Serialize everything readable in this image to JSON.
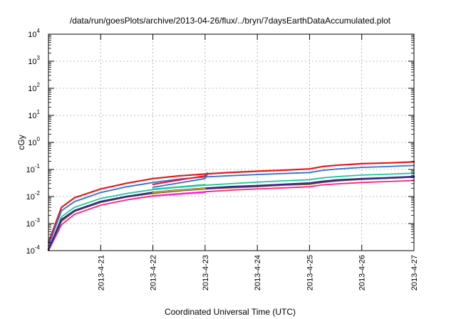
{
  "chart_data": {
    "type": "line",
    "title": "/data/run/goesPlots/archive/2013-04-26/flux/../bryn/7daysEarthDataAccumulated.plot",
    "xlabel": "Coordinated Universal Time (UTC)",
    "ylabel": "cGy",
    "x_ticks": [
      "2013-4-21",
      "2013-4-22",
      "2013-4-23",
      "2013-4-24",
      "2013-4-25",
      "2013-4-26",
      "2013-4-27"
    ],
    "xlim": [
      "2013-04-20",
      "2013-04-27"
    ],
    "y_scale": "log",
    "ylim": [
      0.0001,
      10000
    ],
    "y_ticks": [
      {
        "base": "10",
        "exp": "-4"
      },
      {
        "base": "10",
        "exp": "-3"
      },
      {
        "base": "10",
        "exp": "-2"
      },
      {
        "base": "10",
        "exp": "-1"
      },
      {
        "base": "10",
        "exp": "0"
      },
      {
        "base": "10",
        "exp": "1"
      },
      {
        "base": "10",
        "exp": "2"
      },
      {
        "base": "10",
        "exp": "3"
      },
      {
        "base": "10",
        "exp": "4"
      }
    ],
    "grid": true,
    "legend": "none",
    "series": [
      {
        "color": "#e41a1c",
        "width": 2.2,
        "points": [
          [
            "2013-04-20",
            0.0002
          ],
          [
            "2013-04-20 06:00",
            0.004
          ],
          [
            "2013-04-20 12:00",
            0.009
          ],
          [
            "2013-04-21",
            0.019
          ],
          [
            "2013-04-21 12:00",
            0.031
          ],
          [
            "2013-04-22",
            0.046
          ],
          [
            "2013-04-22 12:00",
            0.058
          ],
          [
            "2013-04-23",
            0.068
          ],
          [
            "2013-04-23 12:00",
            0.078
          ],
          [
            "2013-04-24",
            0.086
          ],
          [
            "2013-04-24 12:00",
            0.094
          ],
          [
            "2013-04-25",
            0.105
          ],
          [
            "2013-04-25 06:00",
            0.128
          ],
          [
            "2013-04-25 12:00",
            0.142
          ],
          [
            "2013-04-26",
            0.163
          ],
          [
            "2013-04-26 12:00",
            0.175
          ],
          [
            "2013-04-27",
            0.19
          ]
        ]
      },
      {
        "color": "#2f6fdb",
        "width": 1.8,
        "points": [
          [
            "2013-04-20",
            0.00015
          ],
          [
            "2013-04-20 06:00",
            0.003
          ],
          [
            "2013-04-20 12:00",
            0.0065
          ],
          [
            "2013-04-21",
            0.014
          ],
          [
            "2013-04-21 12:00",
            0.023
          ],
          [
            "2013-04-22",
            0.033
          ],
          [
            "2013-04-22 12:00",
            0.044
          ],
          [
            "2013-04-23",
            0.053
          ],
          [
            "2013-04-23 12:00",
            0.059
          ],
          [
            "2013-04-24",
            0.065
          ],
          [
            "2013-04-24 12:00",
            0.071
          ],
          [
            "2013-04-25",
            0.077
          ],
          [
            "2013-04-25 06:00",
            0.093
          ],
          [
            "2013-04-25 12:00",
            0.103
          ],
          [
            "2013-04-26",
            0.119
          ],
          [
            "2013-04-26 12:00",
            0.128
          ],
          [
            "2013-04-27",
            0.14
          ]
        ]
      },
      {
        "color": "#1fc99b",
        "width": 1.8,
        "points": [
          [
            "2013-04-20",
            0.0001
          ],
          [
            "2013-04-20 06:00",
            0.0018
          ],
          [
            "2013-04-20 12:00",
            0.004
          ],
          [
            "2013-04-21",
            0.0085
          ],
          [
            "2013-04-21 12:00",
            0.013
          ],
          [
            "2013-04-22",
            0.018
          ],
          [
            "2013-04-22 12:00",
            0.022
          ],
          [
            "2013-04-23",
            0.026
          ],
          [
            "2013-04-23 12:00",
            0.03
          ],
          [
            "2013-04-24",
            0.034
          ],
          [
            "2013-04-24 12:00",
            0.038
          ],
          [
            "2013-04-25",
            0.042
          ],
          [
            "2013-04-25 06:00",
            0.049
          ],
          [
            "2013-04-25 12:00",
            0.054
          ],
          [
            "2013-04-26",
            0.062
          ],
          [
            "2013-04-26 12:00",
            0.067
          ],
          [
            "2013-04-27",
            0.073
          ]
        ]
      },
      {
        "color": "#8b6d1d",
        "width": 1.6,
        "points": [
          [
            "2013-04-20",
            0.0001
          ],
          [
            "2013-04-20 06:00",
            0.0012
          ],
          [
            "2013-04-20 12:00",
            0.0028
          ],
          [
            "2013-04-21",
            0.006
          ],
          [
            "2013-04-21 12:00",
            0.0095
          ],
          [
            "2013-04-22",
            0.013
          ],
          [
            "2013-04-22 12:00",
            0.016
          ],
          [
            "2013-04-23",
            0.019
          ],
          [
            "2013-04-23 12:00",
            0.021
          ],
          [
            "2013-04-24",
            0.023
          ],
          [
            "2013-04-24 12:00",
            0.026
          ],
          [
            "2013-04-25",
            0.028
          ],
          [
            "2013-04-25 06:00",
            0.033
          ],
          [
            "2013-04-25 12:00",
            0.037
          ],
          [
            "2013-04-26",
            0.043
          ],
          [
            "2013-04-26 12:00",
            0.047
          ],
          [
            "2013-04-27",
            0.052
          ]
        ]
      },
      {
        "color": "#ff1f7a",
        "width": 1.8,
        "points": [
          [
            "2013-04-20",
            0.0001
          ],
          [
            "2013-04-20 06:00",
            0.0009
          ],
          [
            "2013-04-20 12:00",
            0.0022
          ],
          [
            "2013-04-21",
            0.0048
          ],
          [
            "2013-04-21 12:00",
            0.0075
          ],
          [
            "2013-04-22",
            0.0105
          ],
          [
            "2013-04-22 12:00",
            0.0125
          ],
          [
            "2013-04-23",
            0.015
          ],
          [
            "2013-04-23 12:00",
            0.0172
          ],
          [
            "2013-04-24",
            0.019
          ],
          [
            "2013-04-24 12:00",
            0.021
          ],
          [
            "2013-04-25",
            0.023
          ],
          [
            "2013-04-25 06:00",
            0.027
          ],
          [
            "2013-04-25 12:00",
            0.029
          ],
          [
            "2013-04-26",
            0.033
          ],
          [
            "2013-04-26 12:00",
            0.036
          ],
          [
            "2013-04-27",
            0.039
          ]
        ]
      },
      {
        "color": "#3b2a86",
        "width": 2.6,
        "points": [
          [
            "2013-04-20",
            0.00011
          ],
          [
            "2013-04-20 06:00",
            0.0014
          ],
          [
            "2013-04-20 12:00",
            0.003
          ],
          [
            "2013-04-21",
            0.0065
          ],
          [
            "2013-04-21 12:00",
            0.01
          ],
          [
            "2013-04-22",
            0.014
          ],
          [
            "2013-04-22 12:00",
            0.017
          ],
          [
            "2013-04-23",
            0.02
          ],
          [
            "2013-04-23 12:00",
            0.023
          ],
          [
            "2013-04-24",
            0.025
          ],
          [
            "2013-04-24 12:00",
            0.028
          ],
          [
            "2013-04-25",
            0.031
          ],
          [
            "2013-04-25 06:00",
            0.036
          ],
          [
            "2013-04-25 12:00",
            0.04
          ],
          [
            "2013-04-26",
            0.045
          ],
          [
            "2013-04-26 12:00",
            0.049
          ],
          [
            "2013-04-27",
            0.054
          ]
        ]
      },
      {
        "color": "#e41a1c",
        "width": 2.0,
        "points": [
          [
            "2013-04-22",
            0.028
          ],
          [
            "2013-04-22 08:00",
            0.036
          ],
          [
            "2013-04-22 16:00",
            0.046
          ],
          [
            "2013-04-23",
            0.058
          ],
          [
            "2013-04-23 01:00",
            0.074
          ]
        ]
      },
      {
        "color": "#2f6fdb",
        "width": 1.8,
        "points": [
          [
            "2013-04-22",
            0.022
          ],
          [
            "2013-04-22 08:00",
            0.028
          ],
          [
            "2013-04-22 16:00",
            0.036
          ],
          [
            "2013-04-23",
            0.046
          ],
          [
            "2013-04-23 01:00",
            0.065
          ]
        ]
      },
      {
        "color": "#1fc99b",
        "width": 1.6,
        "points": [
          [
            "2013-04-22",
            0.019
          ],
          [
            "2013-04-22 12:00",
            0.023
          ],
          [
            "2013-04-23",
            0.028
          ]
        ]
      },
      {
        "color": "#d3b300",
        "width": 1.6,
        "points": [
          [
            "2013-04-22",
            0.014
          ],
          [
            "2013-04-22 12:00",
            0.017
          ],
          [
            "2013-04-23",
            0.02
          ]
        ]
      },
      {
        "color": "#ff1fd2",
        "width": 2.4,
        "points": [
          [
            "2013-04-22",
            0.0105
          ],
          [
            "2013-04-22 12:00",
            0.0125
          ],
          [
            "2013-04-23",
            0.0145
          ]
        ]
      }
    ]
  }
}
